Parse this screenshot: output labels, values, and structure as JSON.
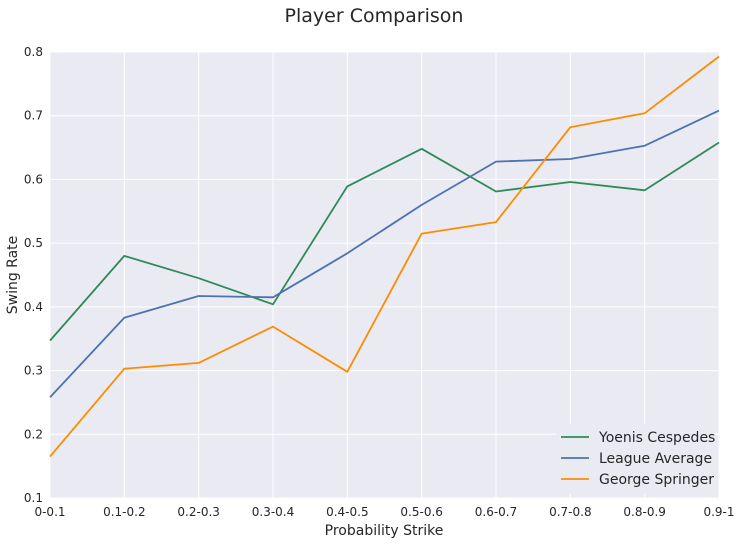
{
  "chart_data": {
    "type": "line",
    "title": "Player Comparison",
    "xlabel": "Probability Strike",
    "ylabel": "Swing Rate",
    "categories": [
      "0-0.1",
      "0.1-0.2",
      "0.2-0.3",
      "0.3-0.4",
      "0.4-0.5",
      "0.5-0.6",
      "0.6-0.7",
      "0.7-0.8",
      "0.8-0.9",
      "0.9-1"
    ],
    "ylim": [
      0.1,
      0.8
    ],
    "yticks": [
      "0.1",
      "0.2",
      "0.3",
      "0.4",
      "0.5",
      "0.6",
      "0.7",
      "0.8"
    ],
    "grid": true,
    "legend_position": "bottom-right",
    "series": [
      {
        "name": "Yoenis Cespedes",
        "color": "#2e8b57",
        "values": [
          0.347,
          0.48,
          0.445,
          0.404,
          0.589,
          0.648,
          0.581,
          0.596,
          0.583,
          0.658
        ]
      },
      {
        "name": "League Average",
        "color": "#4c72b0",
        "values": [
          0.258,
          0.383,
          0.417,
          0.415,
          0.484,
          0.56,
          0.628,
          0.632,
          0.653,
          0.708
        ]
      },
      {
        "name": "George Springer",
        "color": "#ff8c00",
        "values": [
          0.165,
          0.303,
          0.312,
          0.369,
          0.298,
          0.515,
          0.533,
          0.682,
          0.704,
          0.793
        ]
      }
    ]
  }
}
